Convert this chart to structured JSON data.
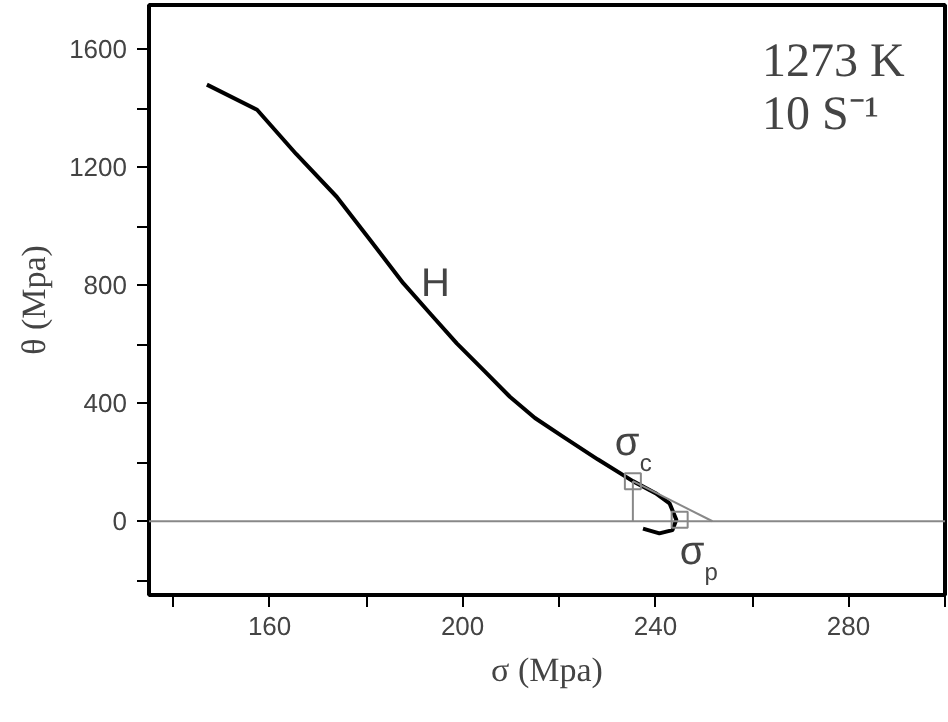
{
  "chart_data": {
    "type": "line",
    "xlabel": "σ (Mpa)",
    "ylabel": "θ (Mpa)",
    "xlim": [
      135,
      300
    ],
    "ylim": [
      -250,
      1750
    ],
    "xticks": [
      {
        "value": 140,
        "label": null
      },
      160,
      {
        "value": 180,
        "label": null
      },
      200,
      {
        "value": 220,
        "label": null
      },
      240,
      {
        "value": 260,
        "label": null
      },
      280,
      {
        "value": 300,
        "label": null
      }
    ],
    "yticks": [
      {
        "value": -200,
        "label": null
      },
      0,
      {
        "value": 200,
        "label": null
      },
      400,
      {
        "value": 600,
        "label": null
      },
      800,
      {
        "value": 1000,
        "label": null
      },
      1200,
      {
        "value": 1400,
        "label": null
      },
      1600
    ],
    "series": [
      {
        "color": "#000000",
        "x": [
          147.0,
          157.4,
          165.5,
          173.9,
          181,
          187.7,
          193.5,
          198.8,
          204.5,
          209.8,
          215,
          220.8,
          228,
          235.3,
          240,
          242.9,
          244.3,
          243.5,
          240.8,
          237.4
        ],
        "values": [
          1480,
          1395,
          1245,
          1100,
          950,
          807,
          700,
          603,
          510,
          422,
          350,
          287,
          210,
          136,
          95,
          61,
          5,
          -30,
          -41,
          -25
        ]
      },
      {
        "color": "#888888",
        "x": [
          235.3,
          251.8
        ],
        "values": [
          136,
          0
        ]
      },
      {
        "color": "#888888",
        "x": [
          235.3,
          235.3
        ],
        "values": [
          136,
          0
        ]
      },
      {
        "type": "scatter",
        "marker": "square",
        "color": "#888888",
        "x": [
          235.3,
          245
        ],
        "values": [
          136,
          5
        ]
      }
    ],
    "ref_lines": [
      {
        "axis": "y",
        "value": 0,
        "color": "#888888"
      }
    ],
    "annotations": [
      "1273 K",
      "10 S⁻¹",
      "H",
      {
        "text": "σ$_{c}$",
        "x": 235.3,
        "y": 136
      },
      {
        "text": "σ$_{p}$",
        "x": 245,
        "y": 5
      }
    ],
    "grid": false,
    "marker": "none",
    "line_style": "solid"
  }
}
